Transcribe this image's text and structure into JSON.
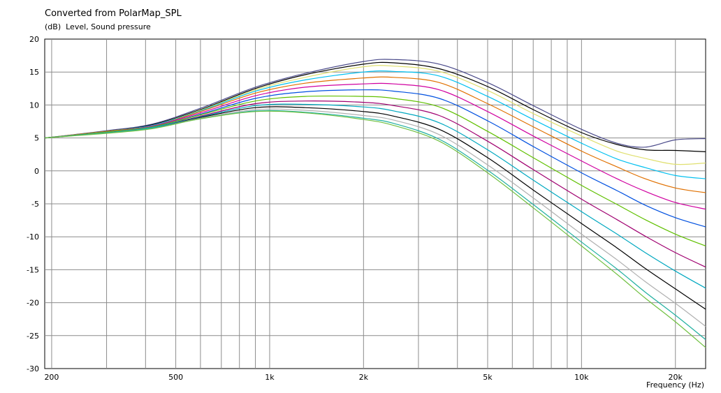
{
  "chart_data": {
    "type": "line",
    "title": "Converted from PolarMap_SPL",
    "ylabel_unit": "(dB)",
    "ylabel": "Level, Sound pressure",
    "xlabel": "Frequency  (Hz)",
    "x_scale": "log",
    "xlim": [
      190,
      25000
    ],
    "ylim": [
      -30,
      20
    ],
    "grid": true,
    "legend": "none",
    "y_ticks": [
      "20",
      "15",
      "10",
      "5",
      "0",
      "-5",
      "-10",
      "-15",
      "-20",
      "-25",
      "-30"
    ],
    "x_ticks": [
      {
        "value": 200,
        "label": "200"
      },
      {
        "value": 500,
        "label": "500"
      },
      {
        "value": 1000,
        "label": "1k"
      },
      {
        "value": 2000,
        "label": "2k"
      },
      {
        "value": 5000,
        "label": "5k"
      },
      {
        "value": 10000,
        "label": "10k"
      },
      {
        "value": 20000,
        "label": "20k"
      }
    ],
    "x": [
      190,
      300,
      420,
      600,
      900,
      1300,
      2000,
      2500,
      3500,
      5000,
      7000,
      10000,
      13000,
      16000,
      20000,
      25000
    ],
    "series": [
      {
        "color": "#4a4a8a",
        "values": [
          5,
          6.1,
          7.1,
          9.5,
          12.7,
          14.8,
          16.6,
          16.9,
          16.2,
          13.4,
          9.9,
          6.3,
          4.2,
          3.6,
          4.7,
          4.9
        ]
      },
      {
        "color": "#000000",
        "values": [
          5,
          6.0,
          7.0,
          9.3,
          12.5,
          14.6,
          16.2,
          16.4,
          15.5,
          12.8,
          9.3,
          5.8,
          4.0,
          3.2,
          3.1,
          2.9
        ]
      },
      {
        "color": "#e0e070",
        "values": [
          5,
          6.0,
          6.9,
          9.2,
          12.3,
          14.2,
          15.8,
          15.9,
          15.1,
          12.2,
          8.7,
          5.3,
          3.0,
          1.9,
          1.0,
          1.2
        ]
      },
      {
        "color": "#00c0f0",
        "values": [
          5,
          6.0,
          6.9,
          9.1,
          12.1,
          13.8,
          15.0,
          15.1,
          14.4,
          11.3,
          7.8,
          4.2,
          1.8,
          0.5,
          -0.7,
          -1.2
        ]
      },
      {
        "color": "#e07000",
        "values": [
          5,
          6.0,
          6.8,
          9.0,
          11.8,
          13.3,
          14.1,
          14.2,
          13.4,
          10.2,
          6.7,
          3.0,
          0.6,
          -1.2,
          -2.6,
          -3.3
        ]
      },
      {
        "color": "#d000a0",
        "values": [
          5,
          5.9,
          6.8,
          8.8,
          11.4,
          12.7,
          13.2,
          13.2,
          12.3,
          9.0,
          5.3,
          1.5,
          -1.2,
          -3.1,
          -4.8,
          -5.8
        ]
      },
      {
        "color": "#0050e0",
        "values": [
          5,
          5.9,
          6.7,
          8.6,
          11.0,
          12.0,
          12.3,
          12.1,
          11.0,
          7.6,
          3.7,
          -0.3,
          -3.0,
          -5.2,
          -7.1,
          -8.5
        ]
      },
      {
        "color": "#60c000",
        "values": [
          5,
          5.9,
          6.7,
          8.5,
          10.6,
          11.3,
          11.3,
          11.0,
          9.7,
          6.0,
          2.0,
          -2.2,
          -5.1,
          -7.4,
          -9.6,
          -11.4
        ]
      },
      {
        "color": "#a00070",
        "values": [
          5,
          5.8,
          6.6,
          8.3,
          10.2,
          10.6,
          10.4,
          9.9,
          8.4,
          4.5,
          0.2,
          -4.3,
          -7.4,
          -9.9,
          -12.4,
          -14.6
        ]
      },
      {
        "color": "#00a8c0",
        "values": [
          5,
          5.8,
          6.6,
          8.2,
          9.9,
          10.1,
          9.7,
          9.1,
          7.3,
          3.2,
          -1.4,
          -6.2,
          -9.6,
          -12.4,
          -15.2,
          -17.8
        ]
      },
      {
        "color": "#000000",
        "values": [
          5,
          5.8,
          6.5,
          8.1,
          9.6,
          9.6,
          9.0,
          8.3,
          6.3,
          2.0,
          -2.9,
          -8.0,
          -11.7,
          -14.8,
          -17.9,
          -21.0
        ]
      },
      {
        "color": "#b0b0b0",
        "values": [
          5,
          5.8,
          6.5,
          8.0,
          9.3,
          9.2,
          8.4,
          7.7,
          5.5,
          0.9,
          -4.1,
          -9.6,
          -13.5,
          -16.8,
          -20.1,
          -23.6
        ]
      },
      {
        "color": "#20b0a0",
        "values": [
          5,
          5.8,
          6.5,
          7.9,
          9.1,
          8.9,
          8.0,
          7.2,
          4.8,
          0.1,
          -5.1,
          -10.8,
          -14.9,
          -18.4,
          -21.9,
          -25.6
        ]
      },
      {
        "color": "#70c040",
        "values": [
          5,
          5.7,
          6.4,
          7.9,
          9.0,
          8.8,
          7.8,
          6.9,
          4.5,
          -0.3,
          -5.6,
          -11.4,
          -15.7,
          -19.3,
          -22.9,
          -26.8
        ]
      }
    ]
  }
}
